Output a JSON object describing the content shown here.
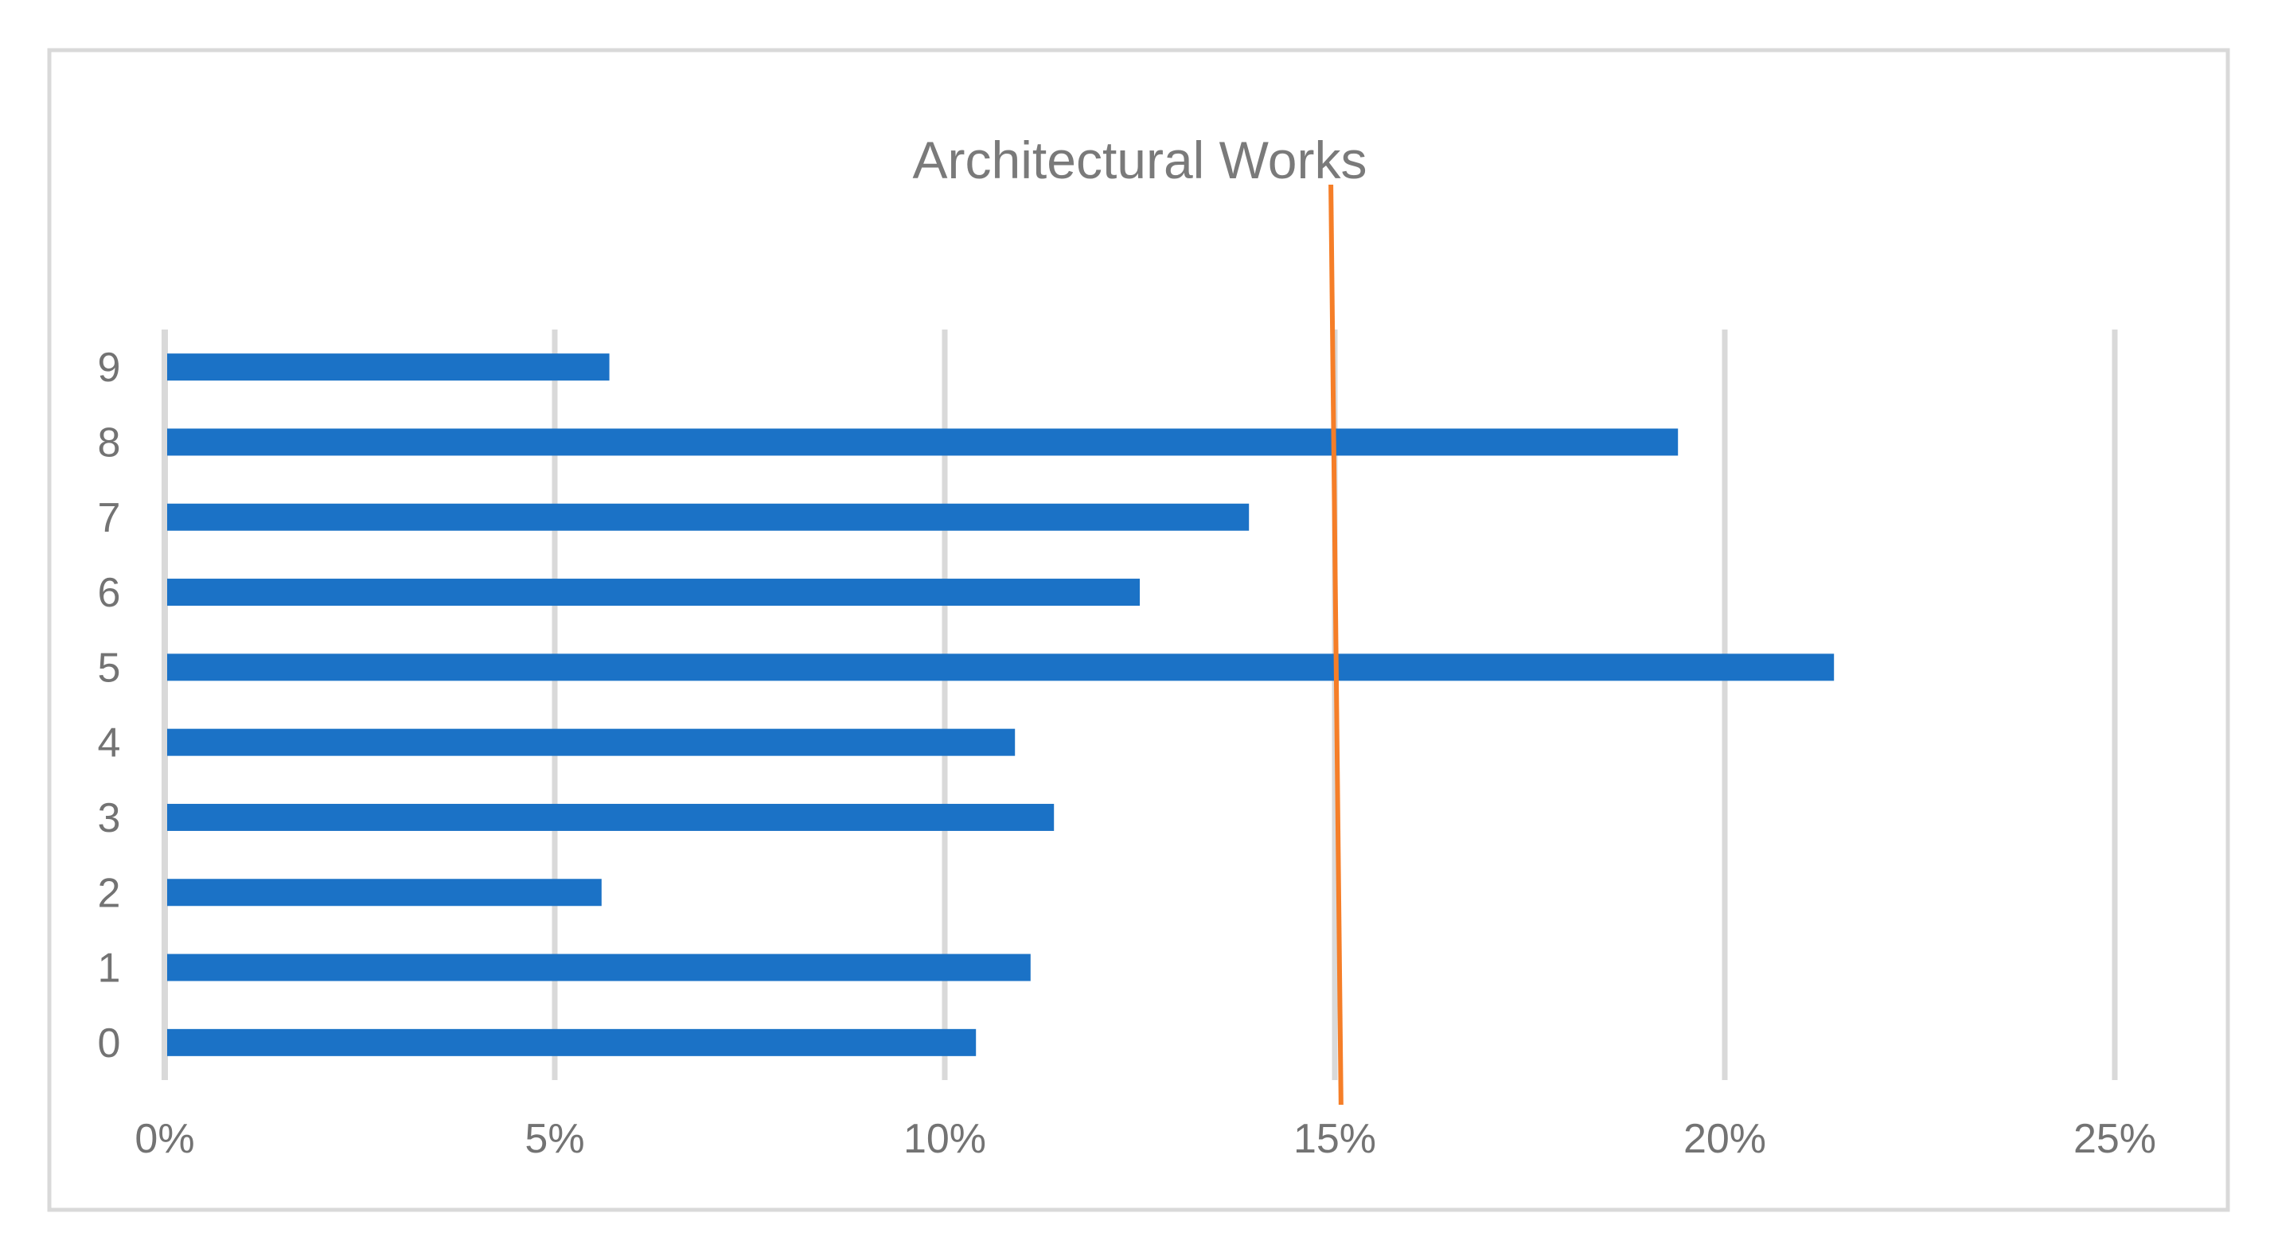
{
  "chart_data": {
    "type": "bar",
    "orientation": "horizontal",
    "title": "Architectural Works",
    "categories": [
      "9",
      "8",
      "7",
      "6",
      "5",
      "4",
      "3",
      "2",
      "1",
      "0"
    ],
    "values": [
      5.7,
      19.4,
      13.9,
      12.5,
      21.4,
      10.9,
      11.4,
      5.6,
      11.1,
      10.4
    ],
    "unit": "%",
    "x_ticks": [
      "0%",
      "5%",
      "10%",
      "15%",
      "20%",
      "25%"
    ],
    "x_tick_values": [
      0,
      5,
      10,
      15,
      20,
      25
    ],
    "xlim": [
      0,
      25
    ],
    "xlabel": "",
    "ylabel": "",
    "legend": "none",
    "grid": "vertical-gridlines-only",
    "bar_color": "#1b72c6",
    "gridline_color": "#d9d9d9",
    "frame_border_color": "#d9d9d9",
    "title_color": "#7a7a7a",
    "axis_label_color": "#737373",
    "reference_line": {
      "value_pct": 15,
      "x_top_pct": 14.95,
      "x_bottom_pct": 15.08,
      "color": "#f57e28",
      "drawn_over_bars": true
    }
  }
}
